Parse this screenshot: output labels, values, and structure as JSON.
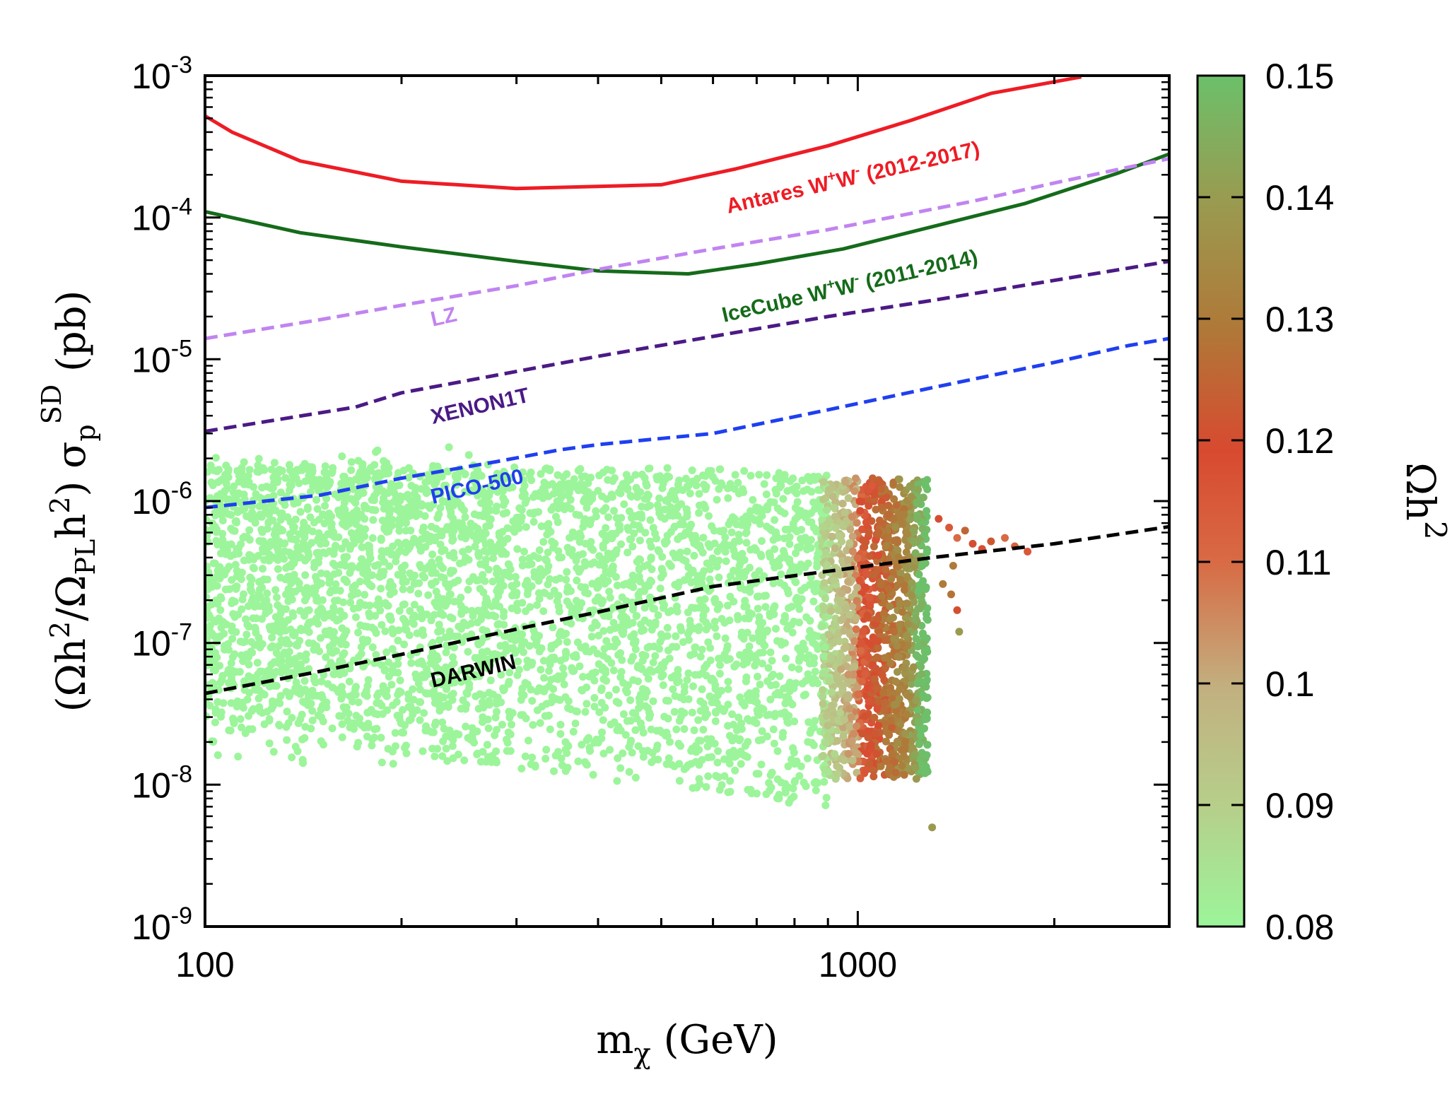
{
  "chart_data": {
    "type": "scatter",
    "title": "",
    "xlabel": {
      "base": "m",
      "sub": "χ",
      "rest": " (GeV)"
    },
    "ylabel": {
      "p1": "(Ωh",
      "sup1": "2",
      "p2": "/Ω",
      "sub1": "PL",
      "p3": "h",
      "sup2": "2",
      "p4": ") σ",
      "sub2": "p",
      "sup3": "SD",
      "p5": " (pb)"
    },
    "x_scale": "log",
    "y_scale": "log",
    "xlim": [
      100,
      3000
    ],
    "ylim": [
      1e-09,
      0.001
    ],
    "x_ticks": [
      {
        "value": 100,
        "label": "100"
      },
      {
        "value": 1000,
        "label": "1000"
      }
    ],
    "y_ticks": [
      {
        "value": 1e-09,
        "base": "10",
        "exp": "-9"
      },
      {
        "value": 1e-08,
        "base": "10",
        "exp": "-8"
      },
      {
        "value": 1e-07,
        "base": "10",
        "exp": "-7"
      },
      {
        "value": 1e-06,
        "base": "10",
        "exp": "-6"
      },
      {
        "value": 1e-05,
        "base": "10",
        "exp": "-5"
      },
      {
        "value": 0.0001,
        "base": "10",
        "exp": "-4"
      },
      {
        "value": 0.001,
        "base": "10",
        "exp": "-3"
      }
    ],
    "colorbar": {
      "label": "Ωh",
      "label_sup": "2",
      "range": [
        0.08,
        0.15
      ],
      "ticks": [
        "0.08",
        "0.09",
        "0.1",
        "0.11",
        "0.12",
        "0.13",
        "0.14",
        "0.15"
      ],
      "colors": [
        "#9cf59a",
        "#c2b080",
        "#d84a30",
        "#9a9a50",
        "#6cc06a"
      ]
    },
    "series": [
      {
        "name": "Antares W+W- (2012-2017)",
        "style": "solid",
        "color": "#ee1c25",
        "x": [
          100,
          110,
          140,
          200,
          300,
          500,
          650,
          900,
          1200,
          1600,
          2200
        ],
        "y": [
          0.00052,
          0.0004,
          0.00025,
          0.00018,
          0.00016,
          0.00017,
          0.00022,
          0.00032,
          0.00048,
          0.00075,
          0.00098
        ]
      },
      {
        "name": "IceCube W+W- (2011-2014)",
        "style": "solid",
        "color": "#156b1a",
        "x": [
          100,
          140,
          200,
          300,
          400,
          550,
          700,
          950,
          1300,
          1800,
          2500,
          3000
        ],
        "y": [
          0.00011,
          7.8e-05,
          6.2e-05,
          4.9e-05,
          4.2e-05,
          4e-05,
          4.7e-05,
          6e-05,
          8.6e-05,
          0.000125,
          0.000205,
          0.00028
        ]
      },
      {
        "name": "LZ",
        "style": "dashed",
        "color": "#c184f0",
        "x": [
          100,
          150,
          200,
          300,
          400,
          600,
          900,
          1500,
          2000,
          3000
        ],
        "y": [
          1.4e-05,
          1.9e-05,
          2.4e-05,
          3.3e-05,
          4.3e-05,
          6e-05,
          8.2e-05,
          0.00013,
          0.000175,
          0.00026
        ]
      },
      {
        "name": "XENON1T",
        "style": "dashed",
        "color": "#4b1a85",
        "x": [
          100,
          170,
          200,
          300,
          400,
          600,
          900,
          1300,
          2000,
          3000
        ],
        "y": [
          3.1e-06,
          4.6e-06,
          5.8e-06,
          8.2e-06,
          1.05e-05,
          1.45e-05,
          2e-05,
          2.6e-05,
          3.6e-05,
          4.9e-05
        ]
      },
      {
        "name": "PICO-500",
        "style": "dashed",
        "color": "#1f3ff0",
        "x": [
          100,
          150,
          200,
          280,
          350,
          400,
          600,
          900,
          1300,
          2000,
          2600,
          3000
        ],
        "y": [
          9e-07,
          1.1e-06,
          1.45e-06,
          1.9e-06,
          2.3e-06,
          2.5e-06,
          3e-06,
          4.4e-06,
          6.3e-06,
          9.5e-06,
          1.25e-05,
          1.4e-05
        ]
      },
      {
        "name": "DARWIN",
        "style": "dashed",
        "color": "#000000",
        "x": [
          100,
          150,
          200,
          300,
          400,
          600,
          900,
          1300,
          2000,
          3000
        ],
        "y": [
          4.4e-08,
          6.3e-08,
          8.3e-08,
          1.25e-07,
          1.65e-07,
          2.5e-07,
          3.2e-07,
          4e-07,
          5e-07,
          6.6e-07
        ]
      }
    ],
    "curve_labels": [
      {
        "series": "Antares W+W- (2012-2017)",
        "pre": "Antares W",
        "s1": "+",
        "mid": "W",
        "s2": "-",
        "post": " (2012-2017)"
      },
      {
        "series": "IceCube W+W- (2011-2014)",
        "pre": "IceCube W",
        "s1": "+",
        "mid": "W",
        "s2": "-",
        "post": " (2011-2014)"
      },
      {
        "series": "LZ",
        "text": "LZ"
      },
      {
        "series": "XENON1T",
        "text": "XENON1T"
      },
      {
        "series": "PICO-500",
        "text": "PICO-500"
      },
      {
        "series": "DARWIN",
        "text": "DARWIN"
      }
    ],
    "scatter_regions": [
      {
        "name": "main band",
        "omega": 0.08,
        "x_range": [
          100,
          900
        ],
        "y_bottom": [
          1.5e-08,
          4e-09
        ],
        "y_top": [
          2e-06,
          1.6e-06
        ]
      },
      {
        "name": "coannihilation edge",
        "omega_range": [
          0.09,
          0.15
        ],
        "x_range": [
          900,
          1300
        ],
        "y_range": [
          1e-08,
          1.5e-06
        ]
      },
      {
        "name": "outliers",
        "omega_range": [
          0.1,
          0.13
        ],
        "x_range": [
          1300,
          1900
        ],
        "y_range": [
          1.2e-07,
          8e-07
        ]
      }
    ],
    "grid": false,
    "legend": "none"
  }
}
